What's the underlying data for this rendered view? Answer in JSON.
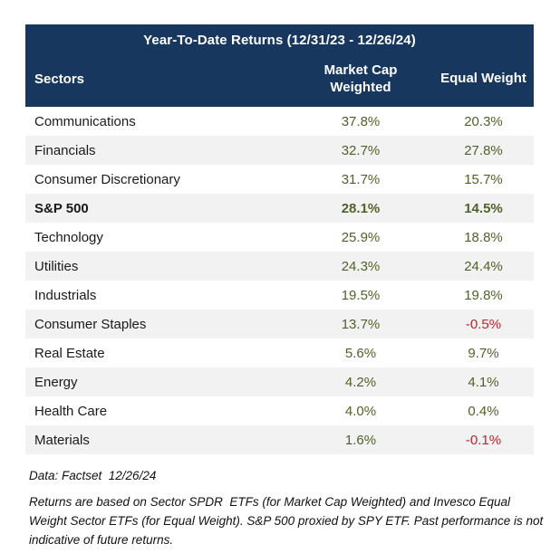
{
  "colors": {
    "header_bg": "#17375e",
    "header_text": "#ffffff",
    "row_stripe": "#f2f2f2",
    "positive_value": "#4f6228",
    "negative_value": "#c02428",
    "body_text": "#1a1a1a"
  },
  "chart_data": {
    "type": "table",
    "title": "Year-To-Date Returns (12/31/23 - 12/26/24)",
    "columns": [
      "Sectors",
      "Market Cap Weighted",
      "Equal Weight"
    ],
    "rows": [
      {
        "sector": "Communications",
        "market_cap_weighted": "37.8%",
        "equal_weight": "20.3%",
        "emphasis": false
      },
      {
        "sector": "Financials",
        "market_cap_weighted": "32.7%",
        "equal_weight": "27.8%",
        "emphasis": false
      },
      {
        "sector": "Consumer Discretionary",
        "market_cap_weighted": "31.7%",
        "equal_weight": "15.7%",
        "emphasis": false
      },
      {
        "sector": "S&P 500",
        "market_cap_weighted": "28.1%",
        "equal_weight": "14.5%",
        "emphasis": true
      },
      {
        "sector": "Technology",
        "market_cap_weighted": "25.9%",
        "equal_weight": "18.8%",
        "emphasis": false
      },
      {
        "sector": "Utilities",
        "market_cap_weighted": "24.3%",
        "equal_weight": "24.4%",
        "emphasis": false
      },
      {
        "sector": "Industrials",
        "market_cap_weighted": "19.5%",
        "equal_weight": "19.8%",
        "emphasis": false
      },
      {
        "sector": "Consumer Staples",
        "market_cap_weighted": "13.7%",
        "equal_weight": "-0.5%",
        "emphasis": false
      },
      {
        "sector": "Real Estate",
        "market_cap_weighted": "5.6%",
        "equal_weight": "9.7%",
        "emphasis": false
      },
      {
        "sector": "Energy",
        "market_cap_weighted": "4.2%",
        "equal_weight": "4.1%",
        "emphasis": false
      },
      {
        "sector": "Health Care",
        "market_cap_weighted": "4.0%",
        "equal_weight": "0.4%",
        "emphasis": false
      },
      {
        "sector": "Materials",
        "market_cap_weighted": "1.6%",
        "equal_weight": "-0.1%",
        "emphasis": false
      }
    ]
  },
  "header": {
    "title": "Year-To-Date Returns (12/31/23 - 12/26/24)",
    "col_sectors": "Sectors",
    "col_market_cap_line1": "Market Cap",
    "col_market_cap_line2": "Weighted",
    "col_equal_weight": "Equal Weight"
  },
  "footer": {
    "source": "Data: Factset  12/26/24",
    "disclaimer": "Returns are based on Sector SPDR  ETFs (for Market Cap Weighted) and Invesco Equal Weight Sector ETFs (for Equal Weight). S&P 500 proxied by SPY ETF. Past performance is not indicative of future returns."
  }
}
